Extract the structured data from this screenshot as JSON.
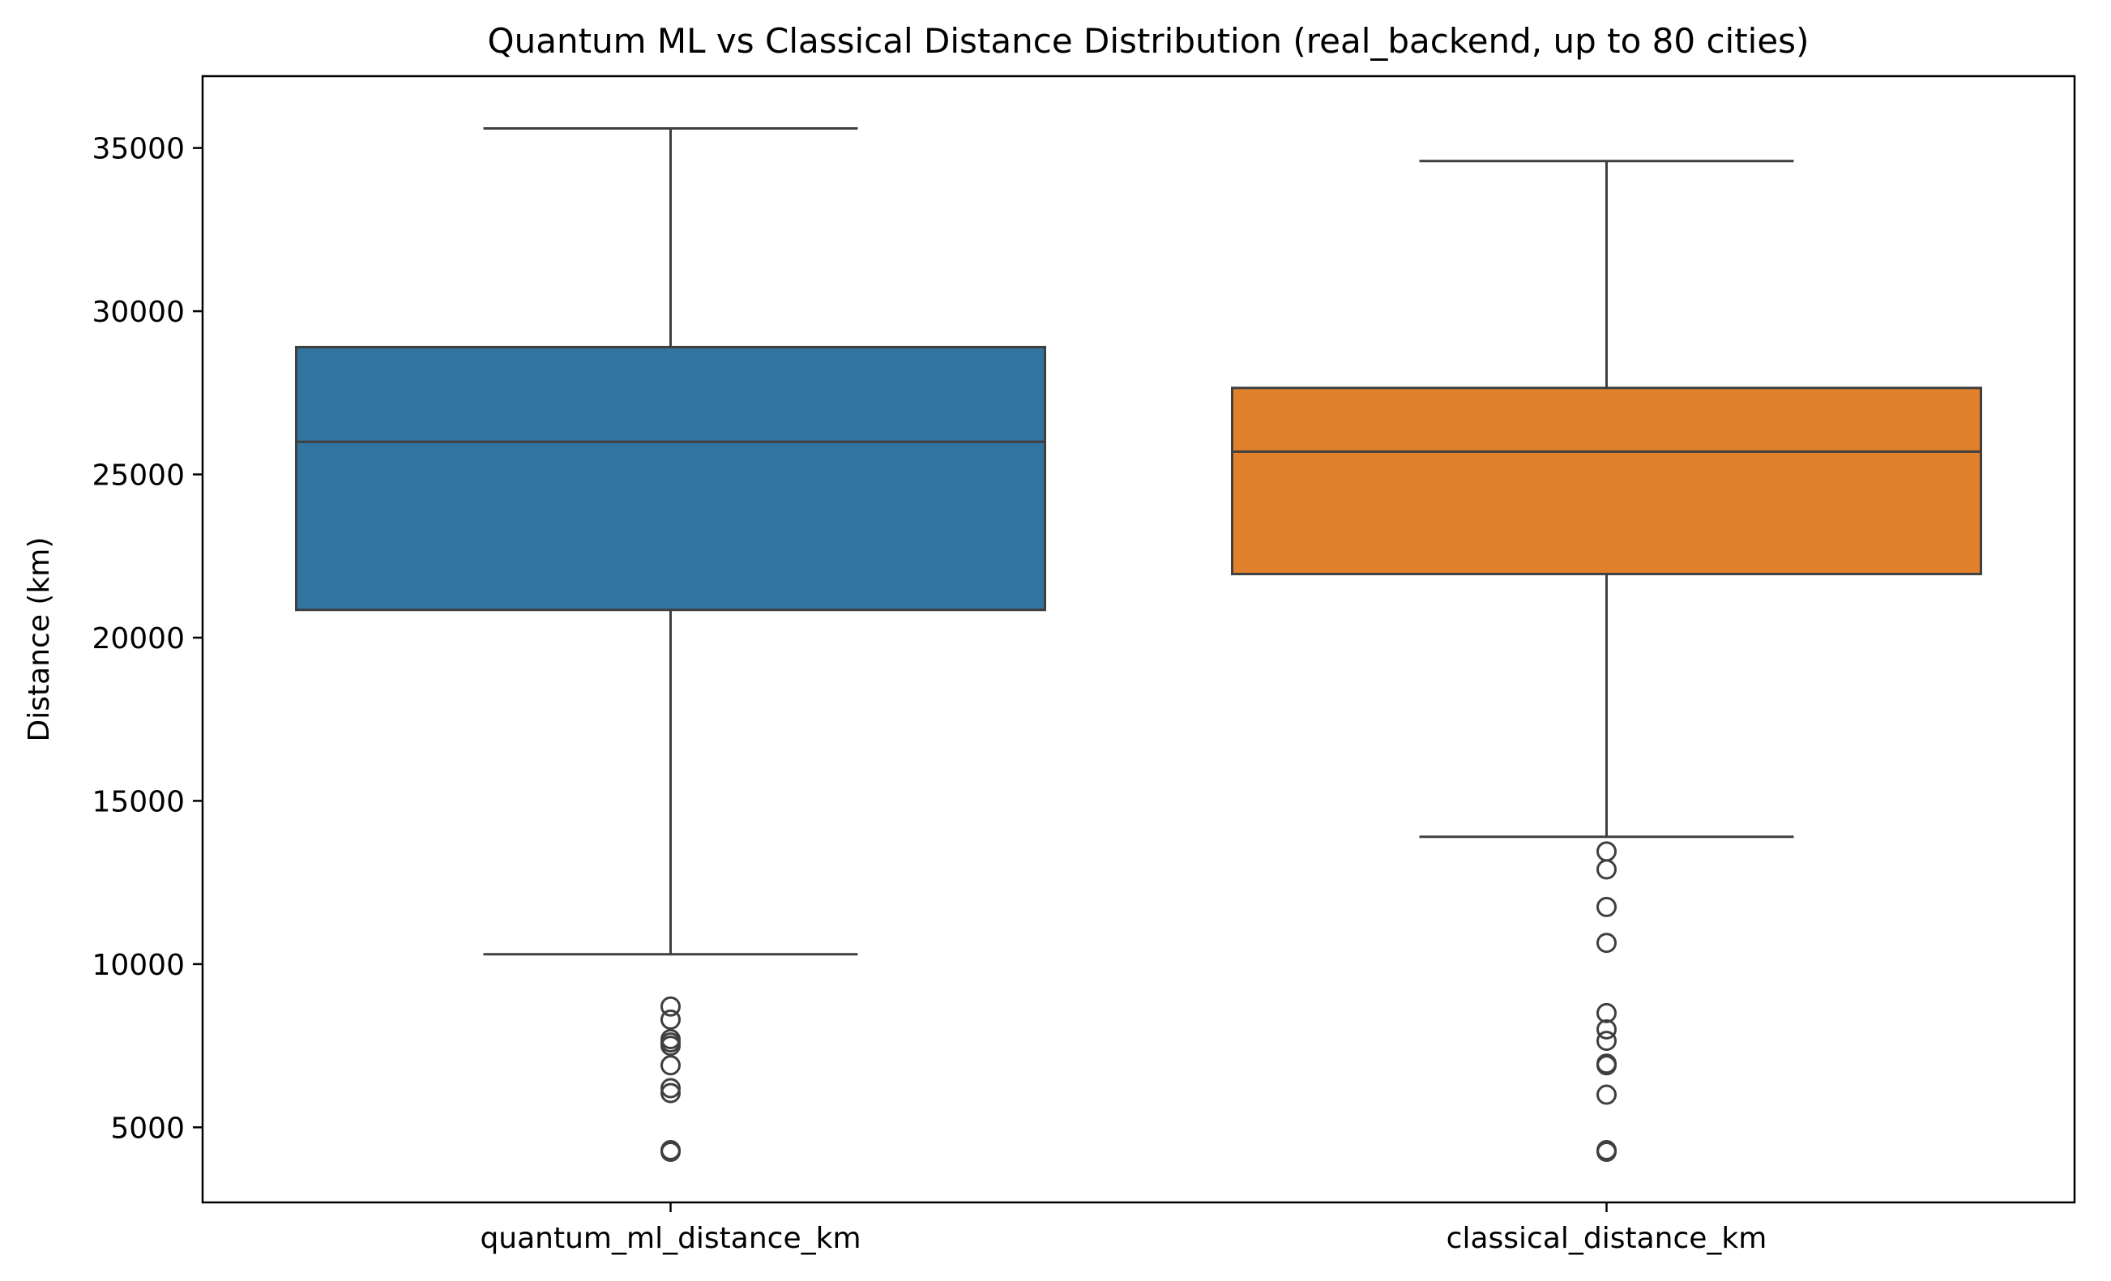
{
  "chart_data": {
    "type": "box",
    "title": "Quantum ML vs Classical Distance Distribution (real_backend, up to 80 cities)",
    "xlabel": "",
    "ylabel": "Distance (km)",
    "ylim": [
      2700,
      37200
    ],
    "yticks": [
      5000,
      10000,
      15000,
      20000,
      25000,
      30000,
      35000
    ],
    "grid": false,
    "legend": "none",
    "categories": [
      "quantum_ml_distance_km",
      "classical_distance_km"
    ],
    "boxes": [
      {
        "category": "quantum_ml_distance_km",
        "color": "#3274a1",
        "whisker_low": 10300,
        "q1": 20850,
        "median": 26000,
        "q3": 28900,
        "whisker_high": 35600,
        "outliers": [
          8700,
          8300,
          7700,
          7600,
          7500,
          6900,
          6200,
          6050,
          4300,
          4250
        ]
      },
      {
        "category": "classical_distance_km",
        "color": "#e1812c",
        "whisker_low": 13900,
        "q1": 21950,
        "median": 25700,
        "q3": 27650,
        "whisker_high": 34600,
        "outliers": [
          13450,
          12900,
          11750,
          10650,
          8500,
          8000,
          7650,
          6950,
          6900,
          6000,
          4300,
          4250
        ]
      }
    ]
  }
}
